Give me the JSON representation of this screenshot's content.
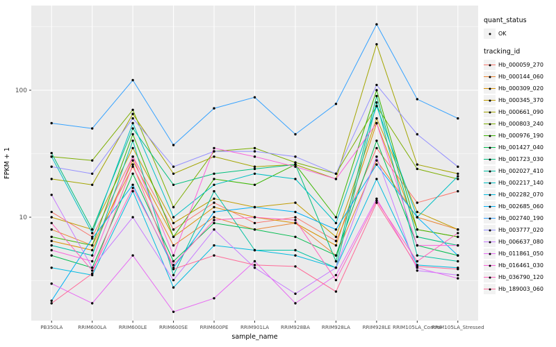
{
  "figure": {
    "panel_bg": "#EBEBEB",
    "grid_major_color": "#FFFFFF",
    "grid_minor_color": "#F7F7F7",
    "tick_label_color": "#4D4D4D",
    "axis_title_color": "#000000",
    "point_color": "#000000"
  },
  "legend": {
    "quant_status_title": "quant_status",
    "quant_status_items": [
      {
        "label": "OK",
        "symbol": "point"
      }
    ],
    "tracking_id_title": "tracking_id"
  },
  "chart_data": {
    "type": "line",
    "title": "",
    "xlabel": "sample_name",
    "ylabel": "FPKM + 1",
    "yscale": "log10",
    "ylim": [
      1.4,
      420
    ],
    "yticks": [
      10,
      100
    ],
    "ytick_labels": [
      "10",
      "100"
    ],
    "yminor": [
      3.162,
      31.62,
      316.2
    ],
    "grid": true,
    "legend_position": "right",
    "categories": [
      "PB350LA",
      "RRIM600LA",
      "RRIM600LE",
      "RRIM600SE",
      "RRIM600PE",
      "RRIM901LA",
      "RRIM928BA",
      "RRIM928LA",
      "RRIM928LE",
      "RRIM105LA_Control",
      "RRIM105LA_Stressed"
    ],
    "series": [
      {
        "name": "Hb_000059_270",
        "color": "#F8766D",
        "values": [
          11,
          7,
          30,
          8,
          13,
          9,
          10,
          6.5,
          35,
          13,
          16
        ]
      },
      {
        "name": "Hb_000144_060",
        "color": "#EA8331",
        "values": [
          8,
          6,
          25,
          6,
          10,
          8,
          9,
          5,
          28,
          10,
          8
        ]
      },
      {
        "name": "Hb_000309_020",
        "color": "#D89000",
        "values": [
          6.5,
          5.5,
          28,
          7,
          12,
          10,
          9,
          6,
          55,
          8,
          7
        ]
      },
      {
        "name": "Hb_000345_370",
        "color": "#C09B00",
        "values": [
          10,
          8,
          35,
          9,
          14,
          12,
          13,
          7,
          60,
          11,
          8
        ]
      },
      {
        "name": "Hb_000661_090",
        "color": "#A3A500",
        "values": [
          20,
          18,
          65,
          22,
          30,
          25,
          26,
          20,
          230,
          26,
          22
        ]
      },
      {
        "name": "Hb_000803_240",
        "color": "#7CAE00",
        "values": [
          30,
          28,
          70,
          12,
          33,
          35,
          27,
          22,
          75,
          24,
          20
        ]
      },
      {
        "name": "Hb_000976_190",
        "color": "#39B600",
        "values": [
          7,
          6,
          45,
          7,
          20,
          18,
          26,
          10,
          100,
          8,
          7
        ]
      },
      {
        "name": "Hb_001427_040",
        "color": "#00BB4E",
        "values": [
          5,
          4,
          22,
          4.5,
          9,
          8,
          7,
          5,
          40,
          6,
          5
        ]
      },
      {
        "name": "Hb_001723_030",
        "color": "#00BF7D",
        "values": [
          32,
          8,
          50,
          18,
          22,
          24,
          26,
          4.5,
          90,
          7,
          6
        ]
      },
      {
        "name": "Hb_002027_410",
        "color": "#00C1A3",
        "values": [
          6,
          5,
          40,
          3.5,
          16,
          5.5,
          5.5,
          4,
          80,
          5,
          4.5
        ]
      },
      {
        "name": "Hb_002217_140",
        "color": "#00BFC4",
        "values": [
          30,
          7.5,
          55,
          10,
          18,
          22,
          20,
          9,
          75,
          10,
          21
        ]
      },
      {
        "name": "Hb_002282_070",
        "color": "#00BAE0",
        "values": [
          4,
          3.5,
          16,
          2.8,
          6,
          5.5,
          5,
          4,
          20,
          4.2,
          4
        ]
      },
      {
        "name": "Hb_002685_060",
        "color": "#00B0F6",
        "values": [
          2.2,
          6.8,
          18,
          4,
          11,
          12,
          11,
          8,
          26,
          10,
          5
        ]
      },
      {
        "name": "Hb_002740_190",
        "color": "#35A2FF",
        "values": [
          55,
          50,
          120,
          37,
          72,
          88,
          45,
          78,
          330,
          85,
          60
        ]
      },
      {
        "name": "Hb_003777_020",
        "color": "#9590FF",
        "values": [
          25,
          22,
          60,
          25,
          33,
          33,
          30,
          22,
          110,
          45,
          25
        ]
      },
      {
        "name": "Hb_006637_080",
        "color": "#C77CFF",
        "values": [
          15,
          4,
          10,
          3.2,
          8,
          4,
          2.5,
          4,
          30,
          3.8,
          3.5
        ]
      },
      {
        "name": "Hb_011861_050",
        "color": "#E76BF3",
        "values": [
          3,
          2.1,
          5,
          1.8,
          2.3,
          4.5,
          2.1,
          3.5,
          14,
          4,
          3.3
        ]
      },
      {
        "name": "Hb_016461_030",
        "color": "#FA62DB",
        "values": [
          5.5,
          4.5,
          30,
          5,
          35,
          30,
          25,
          20,
          55,
          6,
          6
        ]
      },
      {
        "name": "Hb_036790_120",
        "color": "#FF62BC",
        "values": [
          9,
          3.8,
          17,
          4.2,
          9.5,
          10,
          9.5,
          3.2,
          13.5,
          4.5,
          7.5
        ]
      },
      {
        "name": "Hb_189003_060",
        "color": "#FF6A98",
        "values": [
          2.1,
          3.6,
          26,
          3.9,
          5,
          4.2,
          4.1,
          2.6,
          13,
          4.1,
          3.9
        ]
      }
    ]
  }
}
